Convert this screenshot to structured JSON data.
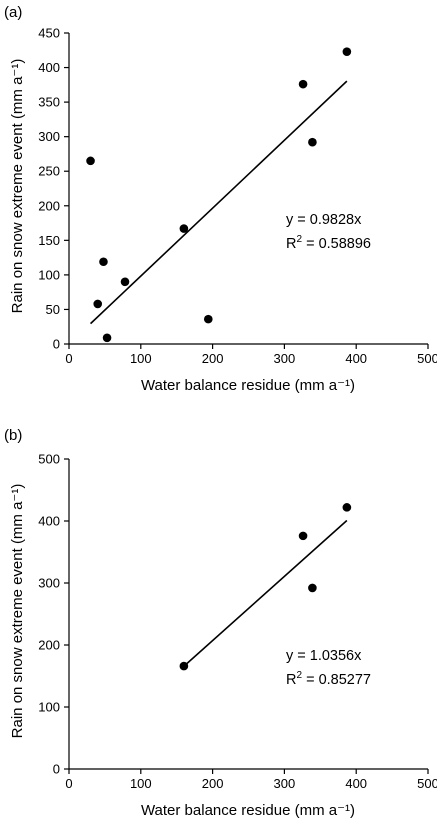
{
  "chart_data": [
    {
      "type": "scatter",
      "panel_label": "(a)",
      "xlabel": "Water balance residue (mm a⁻¹)",
      "ylabel": "Rain on snow extreme event (mm a⁻¹)",
      "xlim": [
        0,
        500
      ],
      "ylim": [
        0,
        450
      ],
      "xticks": [
        0,
        100,
        200,
        300,
        400,
        500
      ],
      "yticks": [
        0,
        50,
        100,
        150,
        200,
        250,
        300,
        350,
        400,
        450
      ],
      "grid": false,
      "points": [
        {
          "x": 30,
          "y": 265
        },
        {
          "x": 40,
          "y": 58
        },
        {
          "x": 48,
          "y": 119
        },
        {
          "x": 53,
          "y": 9
        },
        {
          "x": 78,
          "y": 90
        },
        {
          "x": 160,
          "y": 167
        },
        {
          "x": 194,
          "y": 36
        },
        {
          "x": 326,
          "y": 376
        },
        {
          "x": 339,
          "y": 292
        },
        {
          "x": 387,
          "y": 423
        }
      ],
      "fit_line": {
        "x_start": 30,
        "x_end": 387,
        "slope": 0.9828
      },
      "equation": "y = 0.9828x",
      "r2_label": "R",
      "r2_exp": "2",
      "r2_value": " = 0.58896"
    },
    {
      "type": "scatter",
      "panel_label": "(b)",
      "xlabel": "Water balance residue (mm a⁻¹)",
      "ylabel": "Rain on snow extreme event (mm a⁻¹)",
      "xlim": [
        0,
        500
      ],
      "ylim": [
        0,
        500
      ],
      "xticks": [
        0,
        100,
        200,
        300,
        400,
        500
      ],
      "yticks": [
        0,
        100,
        200,
        300,
        400,
        500
      ],
      "grid": false,
      "points": [
        {
          "x": 160,
          "y": 166
        },
        {
          "x": 326,
          "y": 376
        },
        {
          "x": 339,
          "y": 292
        },
        {
          "x": 387,
          "y": 422
        }
      ],
      "fit_line": {
        "x_start": 160,
        "x_end": 387,
        "slope": 1.0356
      },
      "equation": "y = 1.0356x",
      "r2_label": "R",
      "r2_exp": "2",
      "r2_value": " = 0.85277"
    }
  ]
}
